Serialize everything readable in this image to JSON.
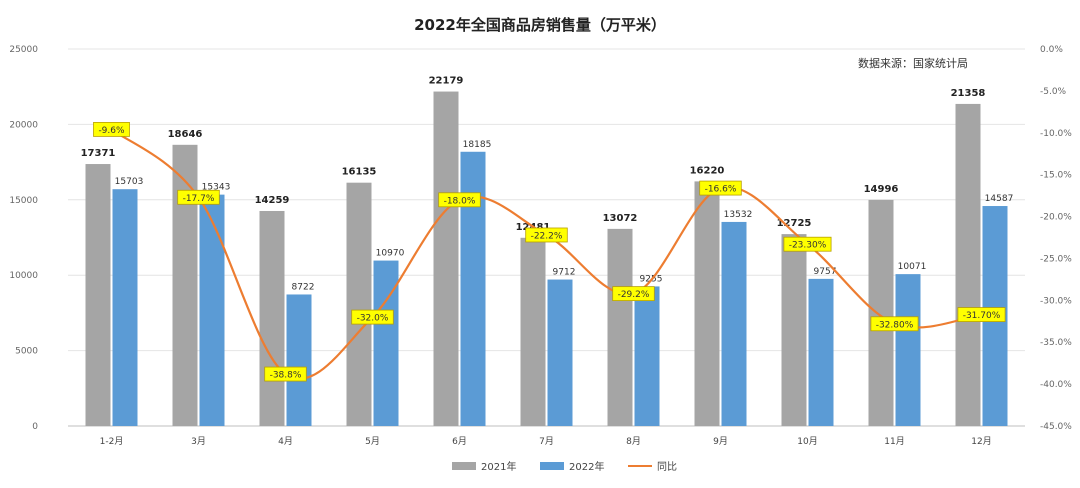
{
  "chart_data": {
    "type": "bar",
    "title": "2022年全国商品房销售量（万平米）",
    "source": "数据来源：国家统计局",
    "categories": [
      "1-2月",
      "3月",
      "4月",
      "5月",
      "6月",
      "7月",
      "8月",
      "9月",
      "10月",
      "11月",
      "12月"
    ],
    "series": [
      {
        "name": "2021年",
        "type": "bar",
        "axis": "left",
        "color": "#a5a5a5",
        "values": [
          17371,
          18646,
          14259,
          16135,
          22179,
          12481,
          13072,
          16220,
          12725,
          14996,
          21358
        ]
      },
      {
        "name": "2022年",
        "type": "bar",
        "axis": "left",
        "color": "#5b9bd5",
        "values": [
          15703,
          15343,
          8722,
          10970,
          18185,
          9712,
          9255,
          13532,
          9757,
          10071,
          14587
        ]
      },
      {
        "name": "同比",
        "type": "line",
        "axis": "right",
        "color": "#ed7d31",
        "values": [
          -9.6,
          -17.7,
          -38.8,
          -32.0,
          -18.0,
          -22.2,
          -29.2,
          -16.6,
          -23.3,
          -32.8,
          -31.7
        ],
        "labels": [
          "-9.6%",
          "-17.7%",
          "-38.8%",
          "-32.0%",
          "-18.0%",
          "-22.2%",
          "-29.2%",
          "-16.6%",
          "-23.30%",
          "-32.80%",
          "-31.70%"
        ]
      }
    ],
    "ylim": [
      0,
      25000
    ],
    "yticks": [
      "0",
      "5000",
      "10000",
      "15000",
      "20000",
      "25000"
    ],
    "y2lim": [
      -45,
      0
    ],
    "y2ticks": [
      "0.0%",
      "-5.0%",
      "-10.0%",
      "-15.0%",
      "-20.0%",
      "-25.0%",
      "-30.0%",
      "-35.0%",
      "-40.0%",
      "-45.0%"
    ],
    "grid": true,
    "legend": "bottom",
    "label_bg": "#ffff00"
  }
}
